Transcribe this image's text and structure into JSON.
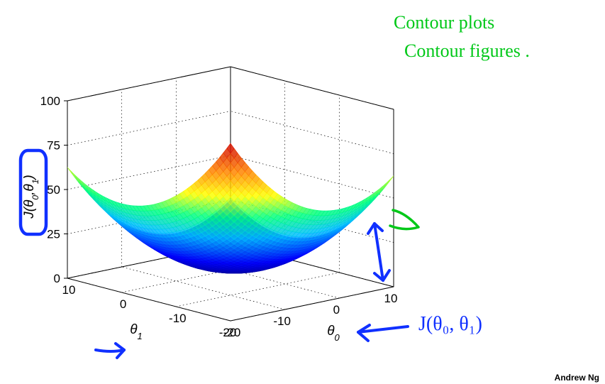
{
  "chart": {
    "type": "3d-surface",
    "function": "J(theta0, theta1) = (theta0^2 + theta1^2) / 8",
    "x_axis": {
      "label": "θ₀",
      "min": -20,
      "max": 10,
      "ticks": [
        -20,
        -10,
        0,
        10
      ]
    },
    "y_axis": {
      "label": "θ₁",
      "min": -20,
      "max": 10,
      "ticks": [
        -20,
        -10,
        0,
        10
      ]
    },
    "z_axis": {
      "label": "J(θ₀,θ₁)",
      "min": 0,
      "max": 100,
      "ticks": [
        0,
        25,
        50,
        75,
        100
      ]
    },
    "mesh": {
      "lines_per_axis": 45,
      "stroke_width": 0.6,
      "face_opacity": 0.85
    },
    "colormap": {
      "name": "jet",
      "stops": [
        {
          "v": 0.0,
          "c": "#00008b"
        },
        {
          "v": 0.15,
          "c": "#0000ff"
        },
        {
          "v": 0.35,
          "c": "#00bfff"
        },
        {
          "v": 0.5,
          "c": "#00ff80"
        },
        {
          "v": 0.65,
          "c": "#ffff00"
        },
        {
          "v": 0.82,
          "c": "#ff8000"
        },
        {
          "v": 1.0,
          "c": "#d00000"
        }
      ]
    },
    "tick_fontsize": 17,
    "axis_label_fontsize": 19,
    "tick_color": "#000000",
    "grid_dot_color": "#000000",
    "edge_color": "#000000",
    "background_color": "#ffffff"
  },
  "annotations": {
    "handwriting_color_green": "#00c818",
    "handwriting_color_blue": "#1030ff",
    "contour_plots": "Contour plots",
    "contour_figures": "Contour figures .",
    "bottom_formula": "J(θ₀, θ₁)",
    "zlabel_box_stroke": "#1030ff",
    "handwriting_fontsize": 26,
    "zlabel_fontsize": 18
  },
  "attribution": {
    "text": "Andrew Ng"
  }
}
